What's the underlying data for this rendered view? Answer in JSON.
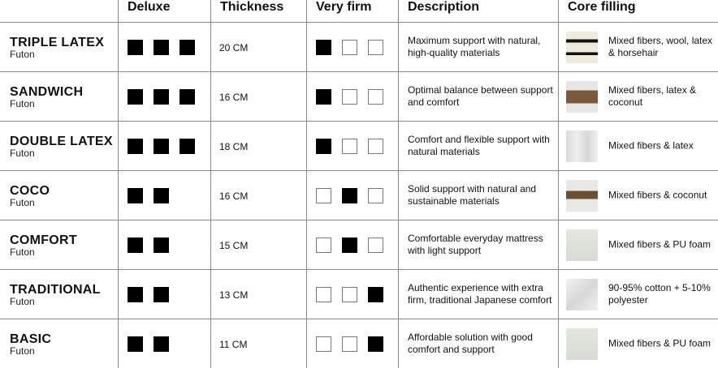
{
  "headers": {
    "deluxe": "Deluxe",
    "thickness": "Thickness",
    "firmness": "Very firm",
    "description": "Description",
    "core": "Core filling"
  },
  "rows": [
    {
      "name": "TRIPLE LATEX",
      "type": "Futon",
      "deluxe": 3,
      "thickness": "20 CM",
      "firm": 1,
      "description": "Maximum support with natural, high-quality materials",
      "core": "Mixed fibers, wool, latex & horsehair",
      "thumb": "striped"
    },
    {
      "name": "SANDWICH",
      "type": "Futon",
      "deluxe": 3,
      "thickness": "16 CM",
      "firm": 1,
      "description": "Optimal balance between support and comfort",
      "core": "Mixed fibers, latex & coconut",
      "thumb": "coconut-latex"
    },
    {
      "name": "DOUBLE LATEX",
      "type": "Futon",
      "deluxe": 3,
      "thickness": "18 CM",
      "firm": 1,
      "description": "Comfort and flexible support with natural materials",
      "core": "Mixed fibers & latex",
      "thumb": "latex"
    },
    {
      "name": "COCO",
      "type": "Futon",
      "deluxe": 2,
      "thickness": "16 CM",
      "firm": 2,
      "description": "Solid support with natural and sustainable materials",
      "core": "Mixed fibers & coconut",
      "thumb": "coconut"
    },
    {
      "name": "COMFORT",
      "type": "Futon",
      "deluxe": 2,
      "thickness": "15 CM",
      "firm": 2,
      "description": "Comfortable everyday mattress with light support",
      "core": "Mixed fibers & PU foam",
      "thumb": "foam"
    },
    {
      "name": "TRADITIONAL",
      "type": "Futon",
      "deluxe": 2,
      "thickness": "13 CM",
      "firm": 3,
      "description": "Authentic experience with extra firm, traditional Japanese comfort",
      "core": "90-95% cotton + 5-10% polyester",
      "thumb": "cotton"
    },
    {
      "name": "BASIC",
      "type": "Futon",
      "deluxe": 2,
      "thickness": "11 CM",
      "firm": 3,
      "description": "Affordable solution with good comfort and support",
      "core": "Mixed fibers & PU foam",
      "thumb": "foam"
    }
  ]
}
